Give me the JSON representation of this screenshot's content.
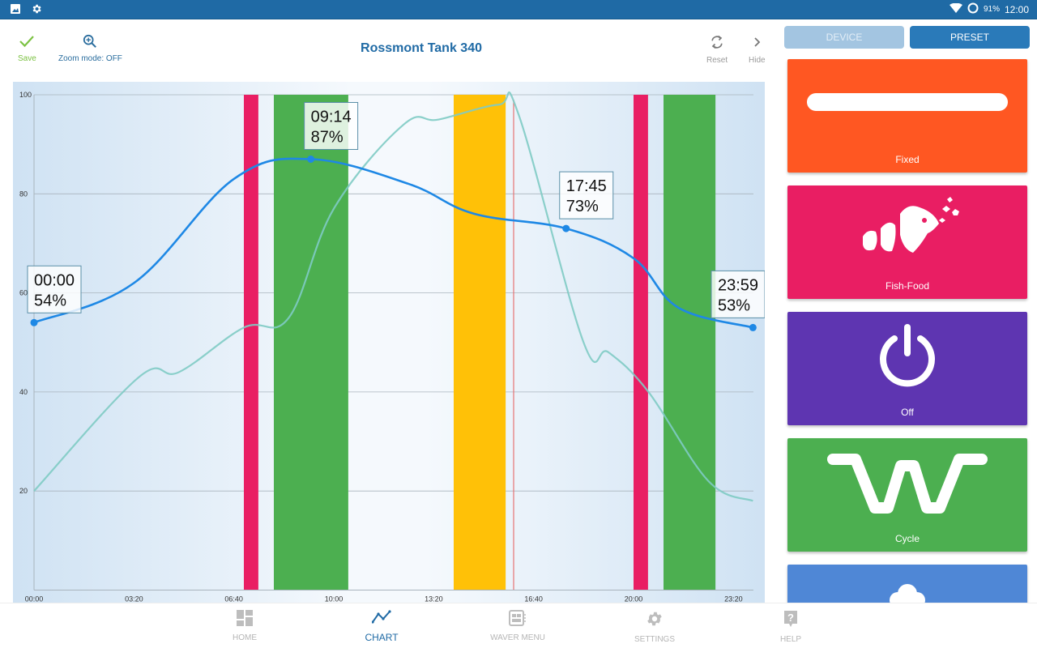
{
  "status_bar": {
    "left_icons": [
      "image-icon",
      "gear-icon"
    ],
    "wifi_icon": "wifi-icon",
    "battery_icon": "battery-ring-icon",
    "battery": "91%",
    "time": "12:00"
  },
  "toolbar": {
    "save_label": "Save",
    "zoom_label": "Zoom mode: OFF",
    "title": "Rossmont Tank 340",
    "reset_label": "Reset",
    "hide_label": "Hide"
  },
  "right_panel": {
    "tabs": [
      {
        "label": "DEVICE",
        "active": false
      },
      {
        "label": "PRESET",
        "active": true
      }
    ],
    "presets": [
      {
        "label": "Fixed",
        "color": "#ff5722",
        "icon": "bar-icon"
      },
      {
        "label": "Fish-Food",
        "color": "#e91e63",
        "icon": "fish-icon"
      },
      {
        "label": "Off",
        "color": "#5e35b1",
        "icon": "power-icon"
      },
      {
        "label": "Cycle",
        "color": "#4caf50",
        "icon": "wave-cycle-icon"
      },
      {
        "label": "",
        "color": "#4f87d6",
        "icon": "cloud-icon"
      }
    ]
  },
  "bottom_nav": [
    {
      "label": "HOME",
      "icon": "dashboard-icon",
      "active": false
    },
    {
      "label": "CHART",
      "icon": "chart-line-icon",
      "active": true
    },
    {
      "label": "WAVER MENU",
      "icon": "waver-menu-icon",
      "active": false
    },
    {
      "label": "SETTINGS",
      "icon": "gear-icon",
      "active": false
    },
    {
      "label": "HELP",
      "icon": "help-icon",
      "active": false
    }
  ],
  "chart_data": {
    "type": "line",
    "title": "",
    "xlabel": "",
    "ylabel": "",
    "xlim_minutes": [
      0,
      1440
    ],
    "ylim": [
      0,
      100
    ],
    "x_ticks": [
      "00:00",
      "03:20",
      "06:40",
      "10:00",
      "13:20",
      "16:40",
      "20:00",
      "23:20"
    ],
    "x_tick_minutes": [
      0,
      200,
      400,
      600,
      800,
      1000,
      1200,
      1400
    ],
    "y_ticks": [
      20,
      40,
      60,
      80,
      100
    ],
    "grid": true,
    "series": [
      {
        "name": "primary",
        "color": "#1e88e5",
        "points": [
          {
            "t": "00:00",
            "m": 0,
            "v": 54,
            "label": true
          },
          {
            "t": "03:20",
            "m": 200,
            "v": 62,
            "label": false
          },
          {
            "t": "06:40",
            "m": 400,
            "v": 83,
            "label": false
          },
          {
            "t": "09:14",
            "m": 554,
            "v": 87,
            "label": true
          },
          {
            "t": "12:30",
            "m": 750,
            "v": 82,
            "label": false
          },
          {
            "t": "14:40",
            "m": 880,
            "v": 76,
            "label": false
          },
          {
            "t": "17:45",
            "m": 1065,
            "v": 73,
            "label": true
          },
          {
            "t": "20:00",
            "m": 1200,
            "v": 67,
            "label": false
          },
          {
            "t": "21:30",
            "m": 1290,
            "v": 57,
            "label": false
          },
          {
            "t": "23:59",
            "m": 1439,
            "v": 53,
            "label": true
          }
        ]
      },
      {
        "name": "secondary",
        "color": "#80cbc4",
        "points": [
          {
            "m": 0,
            "v": 20
          },
          {
            "m": 210,
            "v": 43
          },
          {
            "m": 290,
            "v": 44
          },
          {
            "m": 420,
            "v": 53
          },
          {
            "m": 510,
            "v": 55
          },
          {
            "m": 600,
            "v": 77
          },
          {
            "m": 740,
            "v": 94
          },
          {
            "m": 810,
            "v": 95
          },
          {
            "m": 930,
            "v": 98
          },
          {
            "m": 970,
            "v": 96
          },
          {
            "m": 1100,
            "v": 50
          },
          {
            "m": 1150,
            "v": 48
          },
          {
            "m": 1230,
            "v": 40
          },
          {
            "m": 1350,
            "v": 22
          },
          {
            "m": 1439,
            "v": 18
          }
        ]
      }
    ],
    "bands": [
      {
        "start_m": 420,
        "end_m": 449,
        "color": "#e91e63"
      },
      {
        "start_m": 480,
        "end_m": 629,
        "color": "#4caf50"
      },
      {
        "start_m": 840,
        "end_m": 944,
        "color": "#ffc107"
      },
      {
        "start_m": 1200,
        "end_m": 1229,
        "color": "#e91e63"
      },
      {
        "start_m": 1260,
        "end_m": 1364,
        "color": "#4caf50"
      }
    ],
    "markers": [
      {
        "m": 960,
        "color": "#e57373"
      }
    ],
    "tooltips": [
      {
        "time": "00:00",
        "value": "54%"
      },
      {
        "time": "09:14",
        "value": "87%"
      },
      {
        "time": "17:45",
        "value": "73%"
      },
      {
        "time": "23:59",
        "value": "53%"
      }
    ]
  }
}
